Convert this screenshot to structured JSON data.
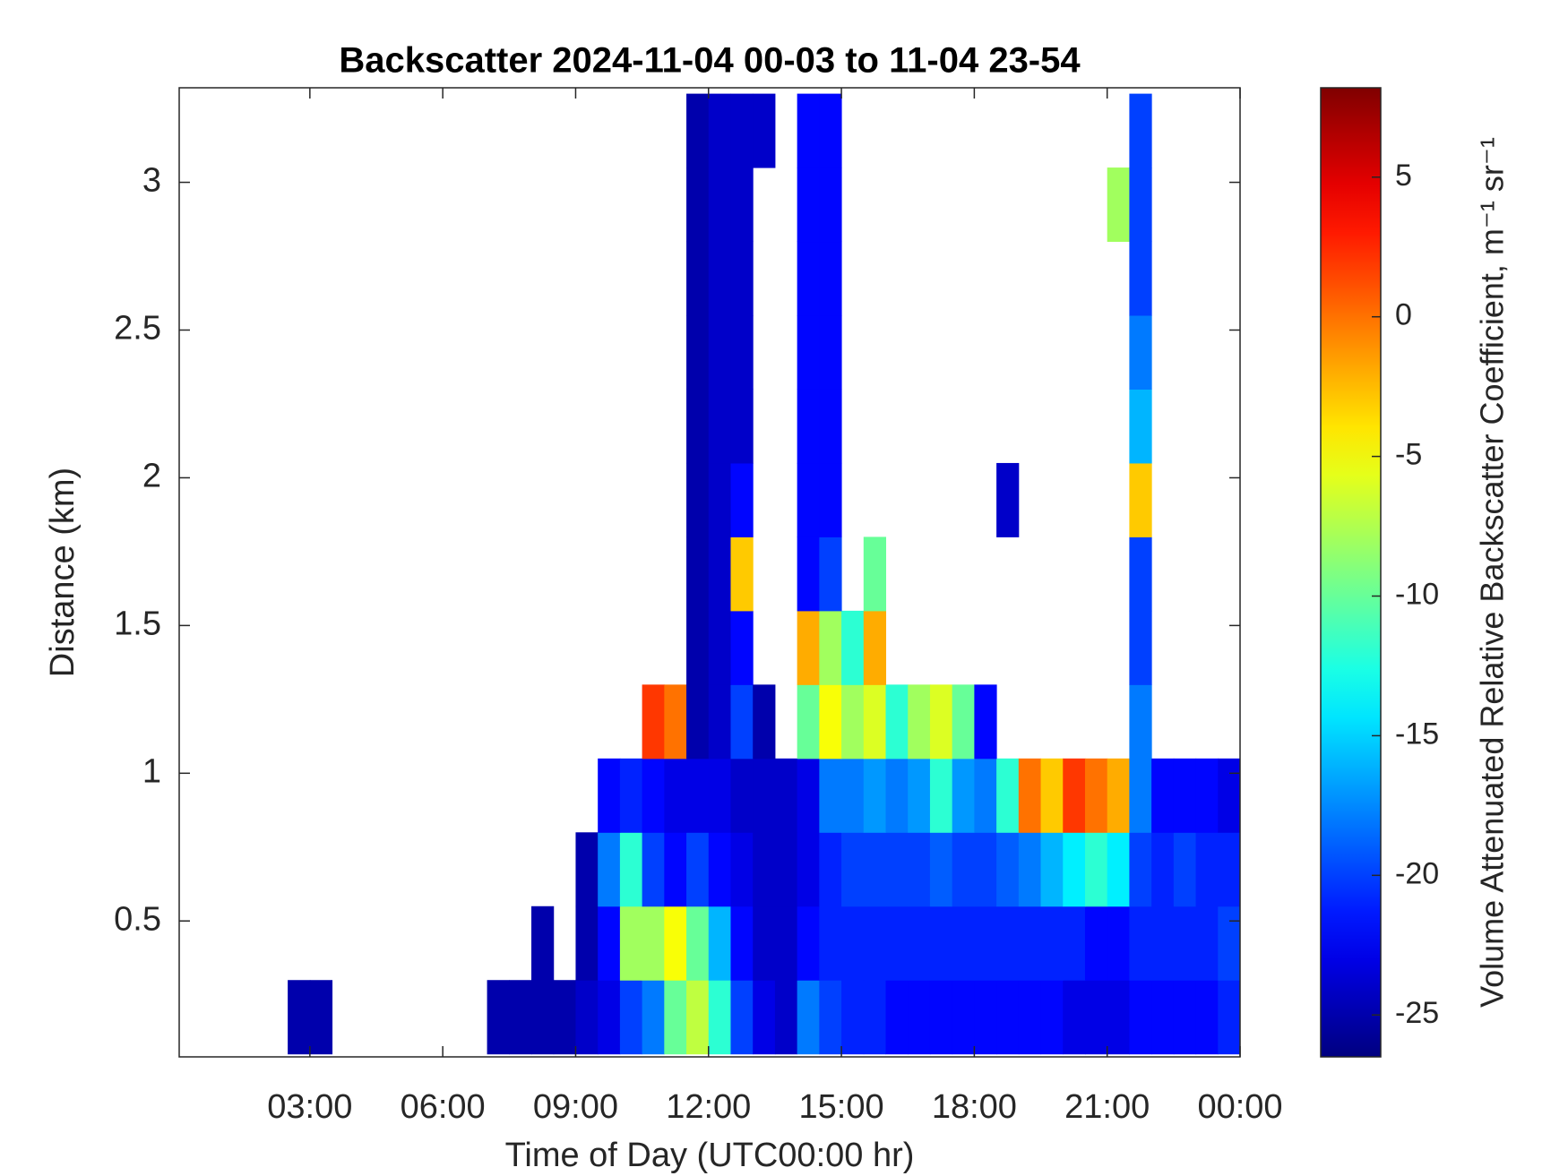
{
  "chart_data": {
    "type": "heatmap",
    "title": "Backscatter 2024-11-04 00-03 to 11-04 23-54",
    "xlabel": "Time of Day (UTC00:00 hr)",
    "ylabel": "Distance (km)",
    "colorbar_label": "Volume Attenuated Relative Backscatter Coefficient, m⁻¹ sr⁻¹",
    "colormap": "jet",
    "xlim": [
      0.05,
      24
    ],
    "ylim": [
      0.04,
      3.32
    ],
    "clim": [
      -26.5,
      8.2
    ],
    "xticks": [
      {
        "value": 3,
        "label": "03:00"
      },
      {
        "value": 6,
        "label": "06:00"
      },
      {
        "value": 9,
        "label": "09:00"
      },
      {
        "value": 12,
        "label": "12:00"
      },
      {
        "value": 15,
        "label": "15:00"
      },
      {
        "value": 18,
        "label": "18:00"
      },
      {
        "value": 21,
        "label": "21:00"
      },
      {
        "value": 24,
        "label": "00:00"
      }
    ],
    "yticks": [
      0.5,
      1,
      1.5,
      2,
      2.5,
      3
    ],
    "colorbar_ticks": [
      -25,
      -20,
      -15,
      -10,
      -5,
      0,
      5
    ],
    "x": [
      0.25,
      0.75,
      1.25,
      1.75,
      2.25,
      2.75,
      3.25,
      3.75,
      4.25,
      4.75,
      5.25,
      5.75,
      6.25,
      6.75,
      7.25,
      7.75,
      8.25,
      8.75,
      9.25,
      9.75,
      10.25,
      10.75,
      11.25,
      11.75,
      12.25,
      12.75,
      13.25,
      13.75,
      14.25,
      14.75,
      15.25,
      15.75,
      16.25,
      16.75,
      17.25,
      17.75,
      18.25,
      18.75,
      19.25,
      19.75,
      20.25,
      20.75,
      21.25,
      21.75,
      22.25,
      22.75,
      23.25,
      23.75
    ],
    "y": [
      0.175,
      0.425,
      0.675,
      0.925,
      1.175,
      1.425,
      1.675,
      1.925,
      2.175,
      2.425,
      2.675,
      2.925,
      3.175
    ],
    "z": [
      [
        null,
        null,
        null,
        null,
        null,
        -25,
        -25,
        null,
        null,
        null,
        null,
        null,
        null,
        null,
        -25,
        -25,
        -25,
        -25,
        -24,
        -23,
        -20,
        -18,
        -10,
        -7,
        -12,
        -20,
        -23,
        -24,
        -18,
        -20,
        -21,
        -21,
        -22,
        -22,
        -22,
        -22,
        -22,
        -22,
        -22,
        -22,
        -23,
        -23,
        -23,
        -22,
        -22,
        -22,
        -22,
        -21
      ],
      [
        null,
        null,
        null,
        null,
        null,
        null,
        null,
        null,
        null,
        null,
        null,
        null,
        null,
        null,
        null,
        null,
        -25,
        null,
        -25,
        -22,
        -8,
        -8,
        -5,
        -10,
        -16,
        -22,
        -24,
        -24,
        -22,
        -21,
        -21,
        -21,
        -21,
        -21,
        -21,
        -21,
        -21,
        -21,
        -21,
        -21,
        -21,
        -22,
        -22,
        -21,
        -21,
        -21,
        -21,
        -20
      ],
      [
        null,
        null,
        null,
        null,
        null,
        null,
        null,
        null,
        null,
        null,
        null,
        null,
        null,
        null,
        null,
        null,
        null,
        null,
        -25,
        -18,
        -12,
        -20,
        -22,
        -20,
        -22,
        -23,
        -24,
        -24,
        -23,
        -21,
        -20,
        -20,
        -20,
        -20,
        -19,
        -20,
        -20,
        -19,
        -18,
        -16,
        -14,
        -12,
        -14,
        -20,
        -21,
        -20,
        -21,
        -21
      ],
      [
        null,
        null,
        null,
        null,
        null,
        null,
        null,
        null,
        null,
        null,
        null,
        null,
        null,
        null,
        null,
        null,
        null,
        null,
        null,
        -22,
        -21,
        -22,
        -23,
        -23,
        -23,
        -24,
        -24,
        -24,
        -23,
        -18,
        -18,
        -17,
        -18,
        -17,
        -12,
        -17,
        -18,
        -12,
        0,
        -3,
        2,
        0,
        -2,
        -18,
        -22,
        -22,
        -22,
        -23
      ],
      [
        null,
        null,
        null,
        null,
        null,
        null,
        null,
        null,
        null,
        null,
        null,
        null,
        null,
        null,
        null,
        null,
        null,
        null,
        null,
        null,
        null,
        2,
        0,
        -25,
        -24,
        -20,
        -25,
        null,
        -10,
        -5,
        -8,
        -6,
        -12,
        -8,
        -6,
        -10,
        -22,
        null,
        null,
        null,
        null,
        null,
        null,
        -18,
        null,
        null,
        null,
        null
      ],
      [
        null,
        null,
        null,
        null,
        null,
        null,
        null,
        null,
        null,
        null,
        null,
        null,
        null,
        null,
        null,
        null,
        null,
        null,
        null,
        null,
        null,
        null,
        null,
        -25,
        -24,
        -22,
        null,
        null,
        -2,
        -8,
        -12,
        -2,
        null,
        null,
        null,
        null,
        null,
        null,
        null,
        null,
        null,
        null,
        null,
        -20,
        null,
        null,
        null,
        null
      ],
      [
        null,
        null,
        null,
        null,
        null,
        null,
        null,
        null,
        null,
        null,
        null,
        null,
        null,
        null,
        null,
        null,
        null,
        null,
        null,
        null,
        null,
        null,
        null,
        -25,
        -24,
        -3,
        null,
        null,
        -22,
        -20,
        null,
        -10,
        null,
        null,
        null,
        null,
        null,
        null,
        null,
        null,
        null,
        null,
        null,
        -20,
        null,
        null,
        null,
        null
      ],
      [
        null,
        null,
        null,
        null,
        null,
        null,
        null,
        null,
        null,
        null,
        null,
        null,
        null,
        null,
        null,
        null,
        null,
        null,
        null,
        null,
        null,
        null,
        null,
        -25,
        -24,
        -22,
        null,
        null,
        -22,
        -22,
        null,
        null,
        null,
        null,
        null,
        null,
        null,
        -24,
        null,
        null,
        null,
        null,
        null,
        -3,
        null,
        null,
        null,
        null
      ],
      [
        null,
        null,
        null,
        null,
        null,
        null,
        null,
        null,
        null,
        null,
        null,
        null,
        null,
        null,
        null,
        null,
        null,
        null,
        null,
        null,
        null,
        null,
        null,
        -25,
        -24,
        -24,
        null,
        null,
        -22,
        -22,
        null,
        null,
        null,
        null,
        null,
        null,
        null,
        null,
        null,
        null,
        null,
        null,
        null,
        -16,
        null,
        null,
        null,
        null
      ],
      [
        null,
        null,
        null,
        null,
        null,
        null,
        null,
        null,
        null,
        null,
        null,
        null,
        null,
        null,
        null,
        null,
        null,
        null,
        null,
        null,
        null,
        null,
        null,
        -25,
        -24,
        -24,
        null,
        null,
        -22,
        -22,
        null,
        null,
        null,
        null,
        null,
        null,
        null,
        null,
        null,
        null,
        null,
        null,
        null,
        -18,
        null,
        null,
        null,
        null
      ],
      [
        null,
        null,
        null,
        null,
        null,
        null,
        null,
        null,
        null,
        null,
        null,
        null,
        null,
        null,
        null,
        null,
        null,
        null,
        null,
        null,
        null,
        null,
        null,
        -25,
        -24,
        -24,
        null,
        null,
        -22,
        -22,
        null,
        null,
        null,
        null,
        null,
        null,
        null,
        null,
        null,
        null,
        null,
        null,
        null,
        -20,
        null,
        null,
        null,
        null
      ],
      [
        null,
        null,
        null,
        null,
        null,
        null,
        null,
        null,
        null,
        null,
        null,
        null,
        null,
        null,
        null,
        null,
        null,
        null,
        null,
        null,
        null,
        null,
        null,
        -25,
        -24,
        -24,
        null,
        null,
        -22,
        -22,
        null,
        null,
        null,
        null,
        null,
        null,
        null,
        null,
        null,
        null,
        null,
        null,
        -8,
        -20,
        null,
        null,
        null,
        null
      ],
      [
        null,
        null,
        null,
        null,
        null,
        null,
        null,
        null,
        null,
        null,
        null,
        null,
        null,
        null,
        null,
        null,
        null,
        null,
        null,
        null,
        null,
        null,
        null,
        -25,
        -24,
        -24,
        -24,
        null,
        -22,
        -22,
        null,
        null,
        null,
        null,
        null,
        null,
        null,
        null,
        null,
        null,
        null,
        null,
        null,
        -20,
        null,
        null,
        null,
        null
      ]
    ]
  }
}
